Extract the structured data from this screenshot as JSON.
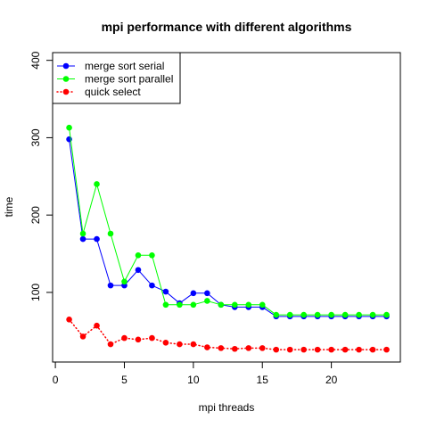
{
  "chart_data": {
    "type": "line",
    "title": "mpi performance with different algorithms",
    "xlabel": "mpi threads",
    "ylabel": "time",
    "xlim": [
      0,
      25
    ],
    "ylim": [
      10,
      410
    ],
    "xticks": [
      0,
      5,
      10,
      15,
      20
    ],
    "yticks": [
      100,
      200,
      300,
      400
    ],
    "legend_position": "top-left",
    "x": [
      1,
      2,
      3,
      4,
      5,
      6,
      7,
      8,
      9,
      10,
      11,
      12,
      13,
      14,
      15,
      16,
      17,
      18,
      19,
      20,
      21,
      22,
      23,
      24
    ],
    "series": [
      {
        "name": "merge sort serial",
        "color": "#0000ff",
        "line_style": "solid",
        "values": [
          298,
          169,
          169,
          109,
          109,
          129,
          109,
          101,
          86,
          99,
          99,
          84,
          81,
          81,
          81,
          69,
          69,
          69,
          69,
          69,
          69,
          69,
          69,
          69
        ]
      },
      {
        "name": "merge sort parallel",
        "color": "#00ff00",
        "line_style": "solid",
        "values": [
          313,
          176,
          240,
          176,
          114,
          148,
          148,
          84,
          84,
          84,
          89,
          84,
          84,
          84,
          84,
          71,
          71,
          71,
          71,
          71,
          71,
          71,
          71,
          71
        ]
      },
      {
        "name": "quick select",
        "color": "#ff0000",
        "line_style": "dotted",
        "values": [
          65,
          43,
          57,
          33,
          41,
          39,
          41,
          35,
          33,
          33,
          29,
          28,
          27,
          28,
          28,
          26,
          26,
          26,
          26,
          26,
          26,
          26,
          26,
          26
        ]
      }
    ]
  }
}
